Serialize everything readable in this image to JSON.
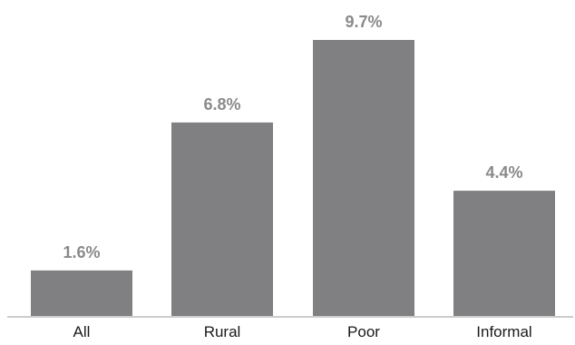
{
  "chart_data": {
    "type": "bar",
    "title": "",
    "xlabel": "",
    "ylabel": "",
    "categories": [
      "All",
      "Rural",
      "Poor",
      "Informal"
    ],
    "values": [
      1.6,
      6.8,
      9.7,
      4.4
    ],
    "value_labels": [
      "1.6%",
      "6.8%",
      "9.7%",
      "4.4%"
    ],
    "ylim": [
      0,
      9.7
    ],
    "grid": false,
    "legend": "none",
    "colors": {
      "bar": "#808083",
      "value_label": "#8a8a8c",
      "tick_label": "#1a1a1a",
      "axis": "#9a9a9a"
    }
  }
}
